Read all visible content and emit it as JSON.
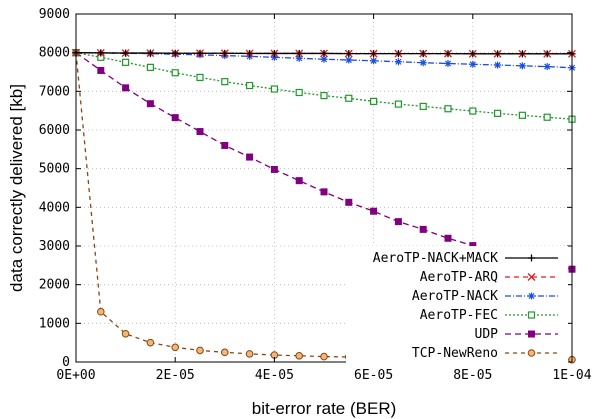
{
  "chart_data": {
    "type": "line",
    "xlabel": "bit-error rate (BER)",
    "ylabel": "data correctly delivered [kb]",
    "xlim": [
      0,
      0.0001
    ],
    "ylim": [
      0,
      9000
    ],
    "x_ticks": [
      "0E+00",
      "2E-05",
      "4E-05",
      "6E-05",
      "8E-05",
      "1E-04"
    ],
    "y_ticks": [
      "0",
      "1000",
      "2000",
      "3000",
      "4000",
      "5000",
      "6000",
      "7000",
      "8000",
      "9000"
    ],
    "grid": true,
    "legend_position": "bottom-right",
    "x": [
      0,
      5e-06,
      1e-05,
      1.5e-05,
      2e-05,
      2.5e-05,
      3e-05,
      3.5e-05,
      4e-05,
      4.5e-05,
      5e-05,
      5.5e-05,
      6e-05,
      6.5e-05,
      7e-05,
      7.5e-05,
      8e-05,
      8.5e-05,
      9e-05,
      9.5e-05,
      0.0001
    ],
    "series": [
      {
        "name": "AeroTP-NACK+MACK",
        "color": "#000000",
        "dash": "",
        "marker": "plus",
        "values": [
          8000,
          7995,
          7990,
          7990,
          7985,
          7985,
          7985,
          7980,
          7980,
          7980,
          7980,
          7975,
          7975,
          7975,
          7975,
          7975,
          7970,
          7970,
          7970,
          7970,
          7970
        ]
      },
      {
        "name": "AeroTP-ARQ",
        "color": "#e41a1c",
        "dash": "5 4",
        "marker": "x",
        "values": [
          8000,
          7995,
          7990,
          7990,
          7985,
          7985,
          7985,
          7980,
          7980,
          7980,
          7980,
          7975,
          7975,
          7975,
          7975,
          7975,
          7970,
          7970,
          7970,
          7970,
          7970
        ]
      },
      {
        "name": "AeroTP-NACK",
        "color": "#1a4fe0",
        "dash": "6 2 1 2",
        "marker": "star",
        "values": [
          8000,
          7990,
          7985,
          7975,
          7960,
          7945,
          7925,
          7905,
          7880,
          7855,
          7830,
          7810,
          7790,
          7765,
          7740,
          7720,
          7700,
          7680,
          7660,
          7640,
          7610
        ]
      },
      {
        "name": "AeroTP-FEC",
        "color": "#1e9a2a",
        "dash": "2 2",
        "marker": "square-open",
        "values": [
          8000,
          7880,
          7750,
          7620,
          7480,
          7360,
          7250,
          7150,
          7060,
          6970,
          6890,
          6820,
          6740,
          6670,
          6610,
          6550,
          6490,
          6430,
          6380,
          6330,
          6280
        ]
      },
      {
        "name": "UDP",
        "color": "#800080",
        "dash": "6 4",
        "marker": "square",
        "values": [
          8000,
          7540,
          7090,
          6680,
          6320,
          5960,
          5600,
          5300,
          4980,
          4690,
          4400,
          4130,
          3900,
          3630,
          3430,
          3200,
          3010,
          2830,
          2680,
          2540,
          2400
        ]
      },
      {
        "name": "TCP-NewReno",
        "color": "#8b4513",
        "dash": "4 4",
        "marker": "circle",
        "values": [
          8000,
          1300,
          730,
          500,
          380,
          300,
          250,
          210,
          180,
          160,
          140,
          130,
          120,
          110,
          100,
          90,
          85,
          80,
          75,
          70,
          60
        ]
      }
    ]
  }
}
